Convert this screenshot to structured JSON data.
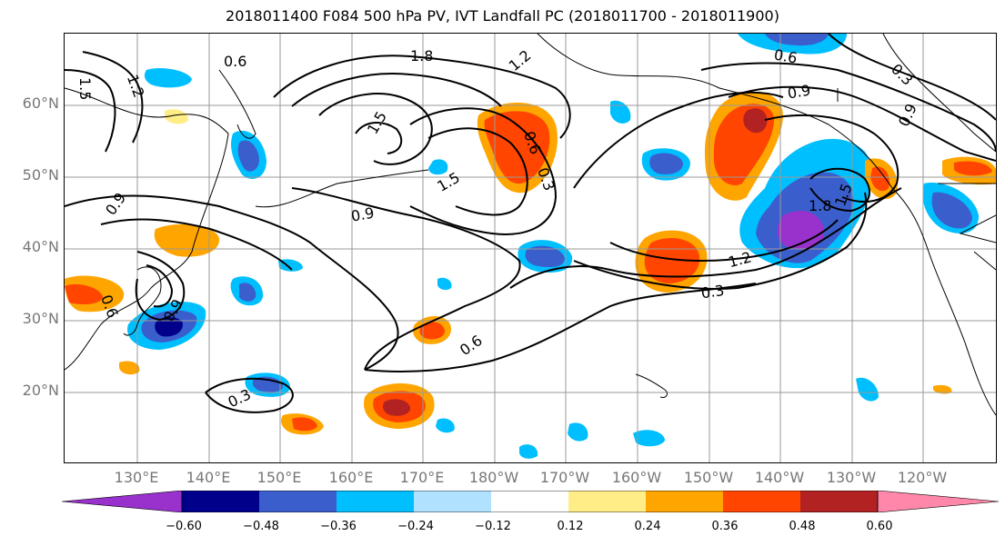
{
  "title": "2018011400 F084 500 hPa PV, IVT Landfall PC (2018011700 - 2018011900)",
  "lat_labels": [
    "60°N",
    "50°N",
    "40°N",
    "30°N",
    "20°N"
  ],
  "lon_labels": [
    "130°E",
    "140°E",
    "150°E",
    "160°E",
    "170°E",
    "180°W",
    "170°W",
    "160°W",
    "150°W",
    "140°W",
    "130°W",
    "120°W"
  ],
  "contour_labels": [
    "0.6",
    "1.8",
    "1.2",
    "1.5",
    "1.2",
    "1.5",
    "0.9",
    "1.5",
    "0.9",
    "0.6",
    "0.3",
    "0.9",
    "0.9",
    "0.6",
    "0.3",
    "1.2",
    "0.3",
    "1.8",
    "1.5",
    "0.6",
    "0.3",
    "0.6",
    "0.9"
  ],
  "colorbar": {
    "tick_labels": [
      "−0.60",
      "−0.48",
      "−0.36",
      "−0.24",
      "−0.12",
      "0.12",
      "0.24",
      "0.36",
      "0.48",
      "0.60"
    ],
    "colors": [
      "#9932cc",
      "#00008b",
      "#3a5fcd",
      "#00bfff",
      "#b0e2ff",
      "#ffffff",
      "#ffee88",
      "#ffa500",
      "#ff4500",
      "#b22222",
      "#ff88aa"
    ]
  },
  "chart_data": {
    "type": "heatmap",
    "variable_contours": "500 hPa PV",
    "variable_fill": "IVT Landfall PC",
    "contour_levels": [
      0.3,
      0.6,
      0.9,
      1.2,
      1.5,
      1.8
    ],
    "fill_levels": [
      -0.6,
      -0.48,
      -0.36,
      -0.24,
      -0.12,
      0.12,
      0.24,
      0.36,
      0.48,
      0.6
    ],
    "lat_ticks": [
      "60°N",
      "50°N",
      "40°N",
      "30°N",
      "20°N"
    ],
    "lon_ticks": [
      "130°E",
      "140°E",
      "150°E",
      "160°E",
      "170°E",
      "180°W",
      "170°W",
      "160°W",
      "150°W",
      "140°W",
      "130°W",
      "120°W"
    ],
    "grid": true
  }
}
